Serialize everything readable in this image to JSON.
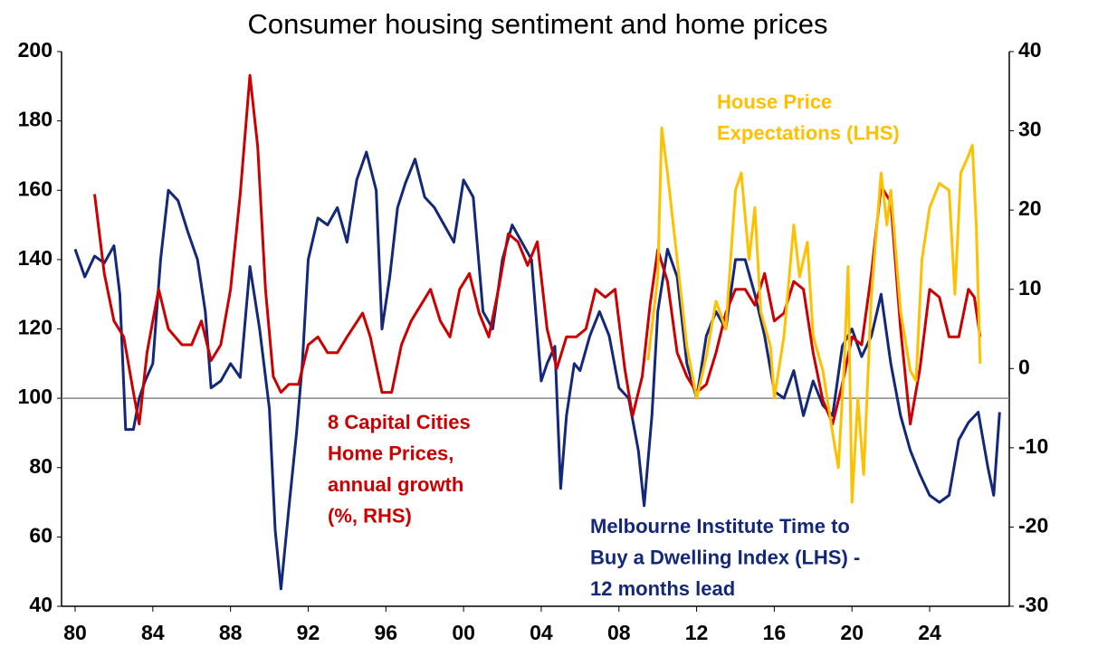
{
  "chart_data": {
    "type": "line",
    "title": "Consumer housing sentiment and home prices",
    "xlim": [
      1979.3,
      2028.1
    ],
    "xticks": [
      {
        "value": 1980,
        "label": "80"
      },
      {
        "value": 1984,
        "label": "84"
      },
      {
        "value": 1988,
        "label": "88"
      },
      {
        "value": 1992,
        "label": "92"
      },
      {
        "value": 1996,
        "label": "96"
      },
      {
        "value": 2000,
        "label": "00"
      },
      {
        "value": 2004,
        "label": "04"
      },
      {
        "value": 2008,
        "label": "08"
      },
      {
        "value": 2012,
        "label": "12"
      },
      {
        "value": 2016,
        "label": "16"
      },
      {
        "value": 2020,
        "label": "20"
      },
      {
        "value": 2024,
        "label": "24"
      }
    ],
    "ylim": [
      40,
      200
    ],
    "yticks": [
      40,
      60,
      80,
      100,
      120,
      140,
      160,
      180,
      200
    ],
    "y2lim": [
      -30,
      40
    ],
    "y2ticks": [
      -30,
      -20,
      -10,
      0,
      10,
      20,
      30,
      40
    ],
    "reference_line": 100,
    "series": [
      {
        "color": "#14287a",
        "x": [
          1980,
          1980.5,
          1981,
          1981.5,
          1982,
          1982.3,
          1982.6,
          1983,
          1983.3,
          1983.6,
          1984,
          1984.4,
          1984.8,
          1985.3,
          1985.8,
          1986.3,
          1986.7,
          1987,
          1987.5,
          1988,
          1988.5,
          1989,
          1989.5,
          1990,
          1990.3,
          1990.6,
          1991,
          1991.4,
          1991.7,
          1992,
          1992.5,
          1993,
          1993.5,
          1994,
          1994.5,
          1995,
          1995.5,
          1995.8,
          1996.2,
          1996.6,
          1997,
          1997.5,
          1998,
          1998.5,
          1999,
          1999.5,
          2000,
          2000.5,
          2001,
          2001.5,
          2002,
          2002.5,
          2003,
          2003.5,
          2004,
          2004.3,
          2004.7,
          2005,
          2005.3,
          2005.7,
          2006,
          2006.5,
          2007,
          2007.5,
          2008,
          2008.5,
          2009,
          2009.3,
          2009.7,
          2010,
          2010.5,
          2011,
          2011.5,
          2012,
          2012.5,
          2013,
          2013.5,
          2014,
          2014.5,
          2015,
          2015.5,
          2016,
          2016.5,
          2017,
          2017.5,
          2018,
          2018.5,
          2019,
          2019.5,
          2020,
          2020.5,
          2021,
          2021.5,
          2022,
          2022.5,
          2023,
          2023.5,
          2024,
          2024.5,
          2025,
          2025.5,
          2026,
          2026.5,
          2027,
          2027.3,
          2027.6
        ],
        "values": [
          143,
          135,
          141,
          139,
          144,
          130,
          91,
          91,
          100,
          105,
          110,
          140,
          160,
          157,
          148,
          140,
          125,
          103,
          105,
          110,
          106,
          138,
          120,
          97,
          62,
          45,
          68,
          90,
          110,
          140,
          152,
          150,
          155,
          145,
          163,
          171,
          160,
          120,
          135,
          155,
          162,
          169,
          158,
          155,
          150,
          145,
          163,
          158,
          125,
          120,
          140,
          150,
          145,
          140,
          105,
          110,
          115,
          74,
          95,
          110,
          108,
          118,
          125,
          118,
          103,
          100,
          85,
          69,
          95,
          125,
          143,
          135,
          110,
          100,
          118,
          125,
          120,
          140,
          140,
          130,
          118,
          102,
          100,
          108,
          95,
          105,
          98,
          95,
          115,
          120,
          112,
          118,
          130,
          110,
          95,
          85,
          78,
          72,
          70,
          72,
          88,
          93,
          96,
          80,
          72,
          96
        ]
      },
      {
        "color": "#cc0000",
        "axis": "y2",
        "x": [
          1981,
          1981.5,
          1982,
          1982.5,
          1983,
          1983.3,
          1983.7,
          1984,
          1984.3,
          1984.8,
          1985.5,
          1986,
          1986.5,
          1987,
          1987.5,
          1988,
          1988.5,
          1989,
          1989.4,
          1989.8,
          1990.2,
          1990.6,
          1991,
          1991.5,
          1992,
          1992.5,
          1993,
          1993.5,
          1994,
          1994.8,
          1995.2,
          1995.8,
          1996.3,
          1996.8,
          1997.3,
          1997.8,
          1998.3,
          1998.8,
          1999.3,
          1999.8,
          2000.3,
          2000.8,
          2001.3,
          2001.8,
          2002.3,
          2002.8,
          2003.3,
          2003.8,
          2004.3,
          2004.8,
          2005.3,
          2005.8,
          2006.3,
          2006.8,
          2007.3,
          2007.8,
          2008.3,
          2008.7,
          2009.2,
          2009.6,
          2010,
          2010.5,
          2011,
          2011.5,
          2012,
          2012.5,
          2013,
          2013.5,
          2014,
          2014.5,
          2015,
          2015.5,
          2016,
          2016.5,
          2017,
          2017.5,
          2018,
          2018.5,
          2019,
          2019.5,
          2020,
          2020.5,
          2021,
          2021.5,
          2022,
          2022.5,
          2023,
          2023.5,
          2024,
          2024.5,
          2025,
          2025.5,
          2026,
          2026.3,
          2026.6
        ],
        "values": [
          22,
          12,
          6,
          4,
          -3,
          -7,
          2,
          6,
          10,
          5,
          3,
          3,
          6,
          1,
          3,
          10,
          22,
          37,
          28,
          10,
          -1,
          -3,
          -2,
          -2,
          3,
          4,
          2,
          2,
          4,
          7,
          4,
          -3,
          -3,
          3,
          6,
          8,
          10,
          6,
          4,
          10,
          12,
          7,
          4,
          10,
          17,
          16,
          13,
          16,
          5,
          0,
          4,
          4,
          5,
          10,
          9,
          10,
          0,
          -6,
          -1,
          8,
          15,
          11,
          2,
          -1,
          -3,
          -2,
          2,
          7,
          10,
          10,
          8,
          12,
          6,
          7,
          11,
          10,
          2,
          -4,
          -7,
          -2,
          4,
          3,
          12,
          23,
          21,
          5,
          -7,
          0,
          10,
          9,
          4,
          4,
          10,
          9,
          4
        ]
      },
      {
        "color": "#ffc000",
        "x": [
          2009.5,
          2010,
          2010.2,
          2010.5,
          2011,
          2011.5,
          2012,
          2012.5,
          2013,
          2013.5,
          2014,
          2014.3,
          2014.7,
          2015,
          2015.3,
          2015.8,
          2016,
          2016.5,
          2017,
          2017.3,
          2017.7,
          2018,
          2018.5,
          2019,
          2019.3,
          2019.6,
          2019.8,
          2020,
          2020.3,
          2020.6,
          2021,
          2021.5,
          2021.8,
          2022,
          2022.5,
          2023,
          2023.3,
          2023.6,
          2024,
          2024.5,
          2025,
          2025.3,
          2025.6,
          2026,
          2026.2,
          2026.4,
          2026.6
        ],
        "values": [
          111,
          135,
          178,
          165,
          140,
          115,
          100,
          112,
          128,
          120,
          160,
          165,
          140,
          155,
          125,
          115,
          100,
          118,
          150,
          135,
          145,
          118,
          108,
          90,
          80,
          110,
          138,
          70,
          100,
          78,
          130,
          165,
          150,
          160,
          125,
          108,
          105,
          140,
          155,
          162,
          160,
          130,
          165,
          170,
          173,
          150,
          110
        ]
      }
    ],
    "annotations": [
      {
        "series": 1,
        "lines": [
          "8 Capital Cities",
          "Home Prices,",
          "annual growth",
          "(%, RHS)"
        ]
      },
      {
        "series": 2,
        "lines": [
          "House Price",
          "Expectations (LHS)"
        ]
      },
      {
        "series": 0,
        "lines": [
          "Melbourne Institute Time to",
          "Buy a Dwelling Index (LHS) -",
          "12 months lead"
        ]
      }
    ]
  }
}
